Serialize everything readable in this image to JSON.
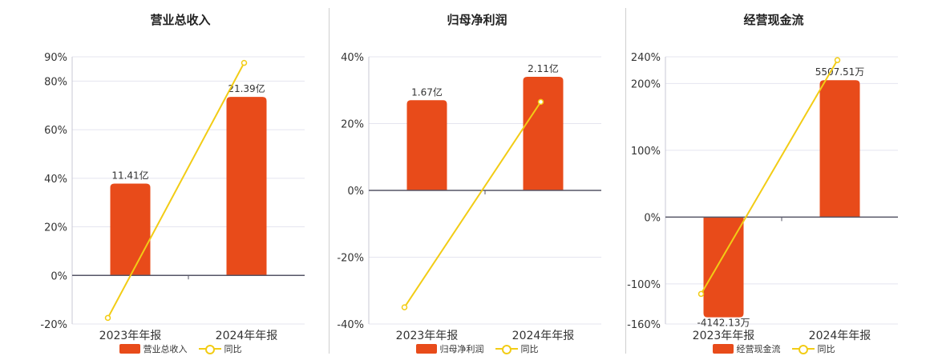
{
  "colors": {
    "bar": "#e84b1a",
    "line": "#f2cc15",
    "grid": "#e4e4ef",
    "axis": "#555566"
  },
  "chart_data": [
    {
      "type": "bar",
      "title": "营业总收入",
      "categories": [
        "2023年年报",
        "2024年年报"
      ],
      "bar_series": {
        "name": "营业总收入",
        "values": [
          37.8,
          73.5
        ],
        "labels": [
          "11.41亿",
          "21.39亿"
        ]
      },
      "line_series": {
        "name": "同比",
        "values": [
          -17.5,
          87.5
        ]
      },
      "ylim": [
        -20,
        90
      ],
      "yticks": [
        -20,
        0,
        20,
        40,
        60,
        80,
        90
      ],
      "ytick_labels": [
        "-20%",
        "0%",
        "20%",
        "40%",
        "60%",
        "80%",
        "90%"
      ],
      "grid": true,
      "legend": "bottom"
    },
    {
      "type": "bar",
      "title": "归母净利润",
      "categories": [
        "2023年年报",
        "2024年年报"
      ],
      "bar_series": {
        "name": "归母净利润",
        "values": [
          27,
          34
        ],
        "labels": [
          "1.67亿",
          "2.11亿"
        ]
      },
      "line_series": {
        "name": "同比",
        "values": [
          -35,
          26.5
        ]
      },
      "ylim": [
        -40,
        40
      ],
      "yticks": [
        -40,
        -20,
        0,
        20,
        40
      ],
      "ytick_labels": [
        "-40%",
        "-20%",
        "0%",
        "20%",
        "40%"
      ],
      "grid": true,
      "legend": "bottom"
    },
    {
      "type": "bar",
      "title": "经营现金流",
      "categories": [
        "2023年年报",
        "2024年年报"
      ],
      "bar_series": {
        "name": "经营现金流",
        "values": [
          -150,
          205
        ],
        "labels": [
          "-4142.13万",
          "5507.51万"
        ]
      },
      "line_series": {
        "name": "同比",
        "values": [
          -115,
          235
        ]
      },
      "ylim": [
        -160,
        240
      ],
      "yticks": [
        -160,
        -100,
        0,
        100,
        200,
        240
      ],
      "ytick_labels": [
        "-160%",
        "-100%",
        "0%",
        "100%",
        "200%",
        "240%"
      ],
      "grid": true,
      "legend": "bottom"
    }
  ]
}
